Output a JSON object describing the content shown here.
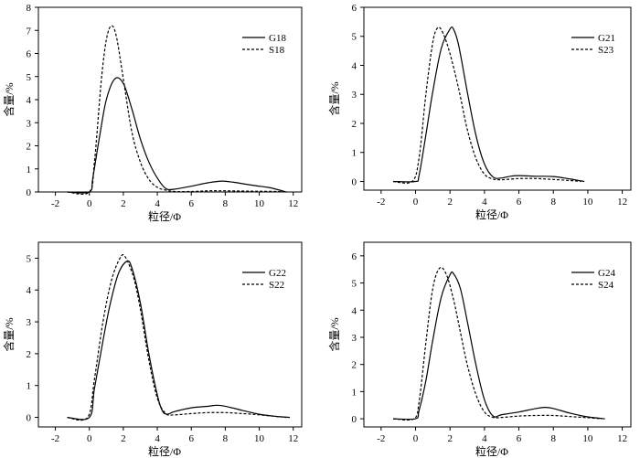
{
  "chart_data": [
    {
      "type": "line",
      "xlabel": "粒径/Φ",
      "ylabel": "含量/%",
      "xlim": [
        -3,
        12.5
      ],
      "ylim": [
        0,
        8
      ],
      "xticks": [
        -2,
        0,
        2,
        4,
        6,
        8,
        10,
        12
      ],
      "xtick_labels": [
        "-2",
        "0",
        "2",
        "4",
        "6",
        "8",
        "10",
        "12"
      ],
      "yticks": [
        0,
        1,
        2,
        3,
        4,
        5,
        6,
        7,
        8
      ],
      "ytick_labels": [
        "0",
        "1",
        "2",
        "3",
        "4",
        "5",
        "6",
        "7",
        "8"
      ],
      "legend_position": "top-right",
      "series": [
        {
          "name": "G18",
          "style": "solid",
          "x": [
            -1.3,
            0,
            0.2,
            0.6,
            1.0,
            1.5,
            2.0,
            2.5,
            3.0,
            3.5,
            4.0,
            4.5,
            5.0,
            6.0,
            7.0,
            7.8,
            8.5,
            9.5,
            10.5,
            11.0,
            11.6
          ],
          "y": [
            0,
            0,
            0.6,
            2.4,
            4.0,
            4.9,
            4.7,
            3.6,
            2.3,
            1.3,
            0.6,
            0.15,
            0.12,
            0.25,
            0.4,
            0.47,
            0.42,
            0.3,
            0.2,
            0.12,
            0
          ]
        },
        {
          "name": "S18",
          "style": "dashed",
          "x": [
            -1.3,
            0,
            0.3,
            0.7,
            1.0,
            1.3,
            1.6,
            2.0,
            2.5,
            3.0,
            3.5,
            4.0,
            4.5,
            5.0,
            6.0,
            7.0,
            8.0,
            9.0,
            10.0,
            11.0,
            11.6
          ],
          "y": [
            0,
            0,
            1.3,
            4.8,
            6.6,
            7.2,
            6.7,
            4.9,
            2.6,
            1.3,
            0.55,
            0.2,
            0.08,
            0.02,
            0.02,
            0.05,
            0.05,
            0.04,
            0.03,
            0.02,
            0
          ]
        }
      ]
    },
    {
      "type": "line",
      "xlabel": "粒径/Φ",
      "ylabel": "含量/%",
      "xlim": [
        -3,
        12.5
      ],
      "ylim": [
        -0.3,
        6
      ],
      "xticks": [
        -2,
        0,
        2,
        4,
        6,
        8,
        10,
        12
      ],
      "xtick_labels": [
        "-2",
        "0",
        "2",
        "4",
        "6",
        "8",
        "10",
        "12"
      ],
      "yticks": [
        0,
        1,
        2,
        3,
        4,
        5,
        6
      ],
      "ytick_labels": [
        "0",
        "1",
        "2",
        "3",
        "4",
        "5",
        "6"
      ],
      "legend_position": "top-right",
      "series": [
        {
          "name": "G21",
          "style": "solid",
          "x": [
            -1.3,
            0,
            0.2,
            0.6,
            1.0,
            1.5,
            2.0,
            2.2,
            2.5,
            3.0,
            3.5,
            4.0,
            4.5,
            5.0,
            5.5,
            6.0,
            7.0,
            8.0,
            9.0,
            9.8
          ],
          "y": [
            0,
            0,
            0.2,
            1.6,
            3.1,
            4.6,
            5.25,
            5.25,
            4.7,
            3.1,
            1.6,
            0.6,
            0.15,
            0.12,
            0.18,
            0.2,
            0.18,
            0.17,
            0.08,
            0
          ]
        },
        {
          "name": "S23",
          "style": "dashed",
          "x": [
            -1.3,
            -0.2,
            0.2,
            0.6,
            1.0,
            1.3,
            1.6,
            2.0,
            2.5,
            3.0,
            3.5,
            4.0,
            4.5,
            5.0,
            6.0,
            7.0,
            8.0,
            9.0,
            9.6
          ],
          "y": [
            0,
            0,
            0.8,
            3.0,
            4.8,
            5.3,
            5.1,
            4.4,
            3.2,
            1.8,
            0.8,
            0.25,
            0.08,
            0.06,
            0.1,
            0.1,
            0.07,
            0.03,
            0
          ]
        }
      ]
    },
    {
      "type": "line",
      "xlabel": "粒径/Φ",
      "ylabel": "含量/%",
      "xlim": [
        -3,
        12.5
      ],
      "ylim": [
        -0.3,
        5.5
      ],
      "xticks": [
        -2,
        0,
        2,
        4,
        6,
        8,
        10,
        12
      ],
      "xtick_labels": [
        "-2",
        "0",
        "2",
        "4",
        "6",
        "8",
        "10",
        "12"
      ],
      "yticks": [
        0,
        1,
        2,
        3,
        4,
        5
      ],
      "ytick_labels": [
        "0",
        "1",
        "2",
        "3",
        "4",
        "5"
      ],
      "legend_position": "top-right",
      "series": [
        {
          "name": "G22",
          "style": "solid",
          "x": [
            -1.3,
            0,
            0.3,
            0.8,
            1.2,
            1.7,
            2.2,
            2.5,
            3.0,
            3.5,
            4.0,
            4.3,
            4.6,
            5.0,
            6.0,
            7.0,
            7.5,
            8.0,
            9.0,
            10.0,
            11.0,
            11.8
          ],
          "y": [
            0,
            0,
            0.9,
            2.4,
            3.5,
            4.5,
            4.9,
            4.7,
            3.6,
            2.0,
            0.7,
            0.2,
            0.1,
            0.18,
            0.3,
            0.35,
            0.38,
            0.35,
            0.22,
            0.1,
            0.03,
            0
          ]
        },
        {
          "name": "S22",
          "style": "dashed",
          "x": [
            -1.3,
            -0.1,
            0.3,
            0.8,
            1.3,
            1.8,
            2.1,
            2.6,
            3.0,
            3.5,
            4.0,
            4.5,
            5.0,
            6.0,
            7.0,
            8.0,
            9.0,
            10.0,
            11.0,
            11.6
          ],
          "y": [
            0,
            0,
            1.2,
            3.0,
            4.3,
            5.0,
            5.05,
            4.4,
            3.4,
            1.8,
            0.6,
            0.12,
            0.08,
            0.12,
            0.15,
            0.15,
            0.12,
            0.08,
            0.03,
            0
          ]
        }
      ]
    },
    {
      "type": "line",
      "xlabel": "粒径/Φ",
      "ylabel": "含量/%",
      "xlim": [
        -3,
        12.5
      ],
      "ylim": [
        -0.3,
        6.5
      ],
      "xticks": [
        -2,
        0,
        2,
        4,
        6,
        8,
        10,
        12
      ],
      "xtick_labels": [
        "-2",
        "0",
        "2",
        "4",
        "6",
        "8",
        "10",
        "12"
      ],
      "yticks": [
        0,
        1,
        2,
        3,
        4,
        5,
        6
      ],
      "ytick_labels": [
        "0",
        "1",
        "2",
        "3",
        "4",
        "5",
        "6"
      ],
      "legend_position": "top-right",
      "series": [
        {
          "name": "G24",
          "style": "solid",
          "x": [
            -1.3,
            0,
            0.2,
            0.6,
            1.0,
            1.5,
            2.0,
            2.2,
            2.6,
            3.0,
            3.5,
            4.0,
            4.5,
            5.0,
            6.0,
            7.0,
            7.5,
            8.0,
            9.0,
            10.0,
            11.0
          ],
          "y": [
            0,
            0,
            0.3,
            1.4,
            2.9,
            4.5,
            5.3,
            5.35,
            4.8,
            3.6,
            2.0,
            0.7,
            0.1,
            0.15,
            0.25,
            0.38,
            0.42,
            0.38,
            0.2,
            0.07,
            0
          ]
        },
        {
          "name": "S24",
          "style": "dashed",
          "x": [
            -1.3,
            -0.1,
            0.2,
            0.6,
            1.0,
            1.4,
            1.8,
            2.2,
            2.6,
            3.0,
            3.5,
            4.0,
            4.5,
            5.0,
            6.0,
            7.0,
            8.0,
            9.0,
            10.0,
            10.8
          ],
          "y": [
            0,
            0,
            0.6,
            2.8,
            4.8,
            5.55,
            5.3,
            4.4,
            3.2,
            2.0,
            0.9,
            0.25,
            0.05,
            0.05,
            0.1,
            0.12,
            0.12,
            0.08,
            0.04,
            0
          ]
        }
      ]
    }
  ]
}
